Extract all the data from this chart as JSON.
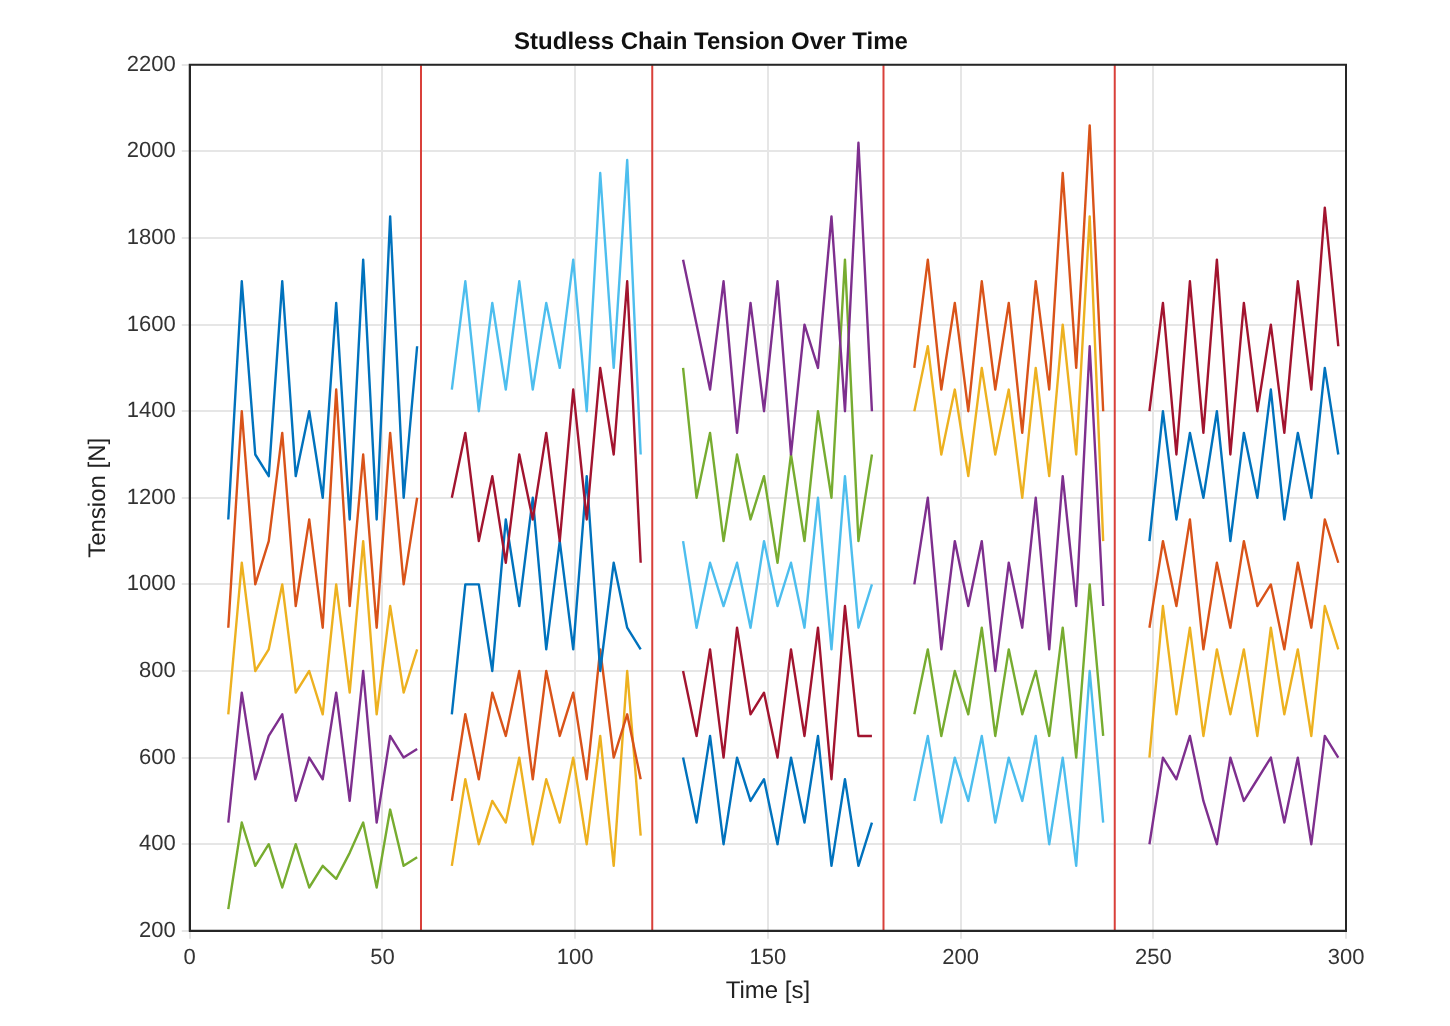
{
  "chart_data": {
    "type": "line",
    "title": "Studless Chain Tension Over Time",
    "xlabel": "Time [s]",
    "ylabel": "Tension [N]",
    "xlim": [
      0,
      300
    ],
    "xticks": [
      0,
      50,
      100,
      150,
      200,
      250,
      300
    ],
    "ylim": [
      200,
      2200
    ],
    "yticks": [
      200,
      400,
      600,
      800,
      1000,
      1200,
      1400,
      1600,
      1800,
      2000,
      2200
    ],
    "grid": true,
    "legend": false,
    "marker": "none",
    "line_style": "solid",
    "ref_lines": [
      {
        "axis": "x",
        "value": 60,
        "color": "#d9403a"
      },
      {
        "axis": "x",
        "value": 120,
        "color": "#d9403a"
      },
      {
        "axis": "x",
        "value": 180,
        "color": "#d9403a"
      },
      {
        "axis": "x",
        "value": 240,
        "color": "#d9403a"
      }
    ],
    "series": [
      {
        "color": "#0072bd",
        "x": [
          10,
          13.5,
          17,
          20.5,
          24,
          27.5,
          31,
          34.5,
          38,
          41.5,
          45,
          48.5,
          52,
          55.5,
          59
        ],
        "values": [
          1150,
          1700,
          1300,
          1250,
          1700,
          1250,
          1400,
          1200,
          1650,
          1150,
          1750,
          1150,
          1850,
          1200,
          1550
        ]
      },
      {
        "color": "#d95319",
        "x": [
          10,
          13.5,
          17,
          20.5,
          24,
          27.5,
          31,
          34.5,
          38,
          41.5,
          45,
          48.5,
          52,
          55.5,
          59
        ],
        "values": [
          900,
          1400,
          1000,
          1100,
          1350,
          950,
          1150,
          900,
          1450,
          950,
          1300,
          900,
          1350,
          1000,
          1200
        ]
      },
      {
        "color": "#edb120",
        "x": [
          10,
          13.5,
          17,
          20.5,
          24,
          27.5,
          31,
          34.5,
          38,
          41.5,
          45,
          48.5,
          52,
          55.5,
          59
        ],
        "values": [
          700,
          1050,
          800,
          850,
          1000,
          750,
          800,
          700,
          1000,
          750,
          1100,
          700,
          950,
          750,
          850
        ]
      },
      {
        "color": "#7e2f8e",
        "x": [
          10,
          13.5,
          17,
          20.5,
          24,
          27.5,
          31,
          34.5,
          38,
          41.5,
          45,
          48.5,
          52,
          55.5,
          59
        ],
        "values": [
          450,
          750,
          550,
          650,
          700,
          500,
          600,
          550,
          750,
          500,
          800,
          450,
          650,
          600,
          620
        ]
      },
      {
        "color": "#77ac30",
        "x": [
          10,
          13.5,
          17,
          20.5,
          24,
          27.5,
          31,
          34.5,
          38,
          41.5,
          45,
          48.5,
          52,
          55.5,
          59
        ],
        "values": [
          250,
          450,
          350,
          400,
          300,
          400,
          300,
          350,
          320,
          380,
          450,
          300,
          480,
          350,
          370
        ]
      },
      {
        "color": "#4dbeee",
        "x": [
          68,
          71.5,
          75,
          78.5,
          82,
          85.5,
          89,
          92.5,
          96,
          99.5,
          103,
          106.5,
          110,
          113.5,
          117
        ],
        "values": [
          1450,
          1700,
          1400,
          1650,
          1450,
          1700,
          1450,
          1650,
          1500,
          1750,
          1400,
          1950,
          1500,
          1980,
          1300
        ]
      },
      {
        "color": "#a2142f",
        "x": [
          68,
          71.5,
          75,
          78.5,
          82,
          85.5,
          89,
          92.5,
          96,
          99.5,
          103,
          106.5,
          110,
          113.5,
          117
        ],
        "values": [
          1200,
          1350,
          1100,
          1250,
          1050,
          1300,
          1150,
          1350,
          1100,
          1450,
          1150,
          1500,
          1300,
          1700,
          1050
        ]
      },
      {
        "color": "#0072bd",
        "x": [
          68,
          71.5,
          75,
          78.5,
          82,
          85.5,
          89,
          92.5,
          96,
          99.5,
          103,
          106.5,
          110,
          113.5,
          117
        ],
        "values": [
          700,
          1000,
          1000,
          800,
          1150,
          950,
          1200,
          850,
          1100,
          850,
          1250,
          800,
          1050,
          900,
          850
        ]
      },
      {
        "color": "#d95319",
        "x": [
          68,
          71.5,
          75,
          78.5,
          82,
          85.5,
          89,
          92.5,
          96,
          99.5,
          103,
          106.5,
          110,
          113.5,
          117
        ],
        "values": [
          500,
          700,
          550,
          750,
          650,
          800,
          550,
          800,
          650,
          750,
          550,
          850,
          600,
          700,
          550
        ]
      },
      {
        "color": "#edb120",
        "x": [
          68,
          71.5,
          75,
          78.5,
          82,
          85.5,
          89,
          92.5,
          96,
          99.5,
          103,
          106.5,
          110,
          113.5,
          117
        ],
        "values": [
          350,
          550,
          400,
          500,
          450,
          600,
          400,
          550,
          450,
          600,
          400,
          650,
          350,
          800,
          420
        ]
      },
      {
        "color": "#7e2f8e",
        "x": [
          128,
          131.5,
          135,
          138.5,
          142,
          145.5,
          149,
          152.5,
          156,
          159.5,
          163,
          166.5,
          170,
          173.5,
          177
        ],
        "values": [
          1750,
          1600,
          1450,
          1700,
          1350,
          1650,
          1400,
          1700,
          1300,
          1600,
          1500,
          1850,
          1400,
          2020,
          1400
        ]
      },
      {
        "color": "#77ac30",
        "x": [
          128,
          131.5,
          135,
          138.5,
          142,
          145.5,
          149,
          152.5,
          156,
          159.5,
          163,
          166.5,
          170,
          173.5,
          177
        ],
        "values": [
          1500,
          1200,
          1350,
          1100,
          1300,
          1150,
          1250,
          1050,
          1300,
          1100,
          1400,
          1200,
          1750,
          1100,
          1300
        ]
      },
      {
        "color": "#4dbeee",
        "x": [
          128,
          131.5,
          135,
          138.5,
          142,
          145.5,
          149,
          152.5,
          156,
          159.5,
          163,
          166.5,
          170,
          173.5,
          177
        ],
        "values": [
          1100,
          900,
          1050,
          950,
          1050,
          900,
          1100,
          950,
          1050,
          900,
          1200,
          850,
          1250,
          900,
          1000
        ]
      },
      {
        "color": "#a2142f",
        "x": [
          128,
          131.5,
          135,
          138.5,
          142,
          145.5,
          149,
          152.5,
          156,
          159.5,
          163,
          166.5,
          170,
          173.5,
          177
        ],
        "values": [
          800,
          650,
          850,
          600,
          900,
          700,
          750,
          600,
          850,
          650,
          900,
          550,
          950,
          650,
          650
        ]
      },
      {
        "color": "#0072bd",
        "x": [
          128,
          131.5,
          135,
          138.5,
          142,
          145.5,
          149,
          152.5,
          156,
          159.5,
          163,
          166.5,
          170,
          173.5,
          177
        ],
        "values": [
          600,
          450,
          650,
          400,
          600,
          500,
          550,
          400,
          600,
          450,
          650,
          350,
          550,
          350,
          450
        ]
      },
      {
        "color": "#d95319",
        "x": [
          188,
          191.5,
          195,
          198.5,
          202,
          205.5,
          209,
          212.5,
          216,
          219.5,
          223,
          226.5,
          230,
          233.5,
          237
        ],
        "values": [
          1500,
          1750,
          1450,
          1650,
          1400,
          1700,
          1450,
          1650,
          1350,
          1700,
          1450,
          1950,
          1500,
          2060,
          1400
        ]
      },
      {
        "color": "#edb120",
        "x": [
          188,
          191.5,
          195,
          198.5,
          202,
          205.5,
          209,
          212.5,
          216,
          219.5,
          223,
          226.5,
          230,
          233.5,
          237
        ],
        "values": [
          1400,
          1550,
          1300,
          1450,
          1250,
          1500,
          1300,
          1450,
          1200,
          1500,
          1250,
          1600,
          1300,
          1850,
          1100
        ]
      },
      {
        "color": "#7e2f8e",
        "x": [
          188,
          191.5,
          195,
          198.5,
          202,
          205.5,
          209,
          212.5,
          216,
          219.5,
          223,
          226.5,
          230,
          233.5,
          237
        ],
        "values": [
          1000,
          1200,
          850,
          1100,
          950,
          1100,
          800,
          1050,
          900,
          1200,
          850,
          1250,
          950,
          1550,
          950
        ]
      },
      {
        "color": "#77ac30",
        "x": [
          188,
          191.5,
          195,
          198.5,
          202,
          205.5,
          209,
          212.5,
          216,
          219.5,
          223,
          226.5,
          230,
          233.5,
          237
        ],
        "values": [
          700,
          850,
          650,
          800,
          700,
          900,
          650,
          850,
          700,
          800,
          650,
          900,
          600,
          1000,
          650
        ]
      },
      {
        "color": "#4dbeee",
        "x": [
          188,
          191.5,
          195,
          198.5,
          202,
          205.5,
          209,
          212.5,
          216,
          219.5,
          223,
          226.5,
          230,
          233.5,
          237
        ],
        "values": [
          500,
          650,
          450,
          600,
          500,
          650,
          450,
          600,
          500,
          650,
          400,
          600,
          350,
          800,
          450
        ]
      },
      {
        "color": "#a2142f",
        "x": [
          249,
          252.5,
          256,
          259.5,
          263,
          266.5,
          270,
          273.5,
          277,
          280.5,
          284,
          287.5,
          291,
          294.5,
          298
        ],
        "values": [
          1400,
          1650,
          1300,
          1700,
          1350,
          1750,
          1300,
          1650,
          1400,
          1600,
          1350,
          1700,
          1450,
          1870,
          1550
        ]
      },
      {
        "color": "#0072bd",
        "x": [
          249,
          252.5,
          256,
          259.5,
          263,
          266.5,
          270,
          273.5,
          277,
          280.5,
          284,
          287.5,
          291,
          294.5,
          298
        ],
        "values": [
          1100,
          1400,
          1150,
          1350,
          1200,
          1400,
          1100,
          1350,
          1200,
          1450,
          1150,
          1350,
          1200,
          1500,
          1300
        ]
      },
      {
        "color": "#d95319",
        "x": [
          249,
          252.5,
          256,
          259.5,
          263,
          266.5,
          270,
          273.5,
          277,
          280.5,
          284,
          287.5,
          291,
          294.5,
          298
        ],
        "values": [
          900,
          1100,
          950,
          1150,
          850,
          1050,
          900,
          1100,
          950,
          1000,
          850,
          1050,
          900,
          1150,
          1050
        ]
      },
      {
        "color": "#edb120",
        "x": [
          249,
          252.5,
          256,
          259.5,
          263,
          266.5,
          270,
          273.5,
          277,
          280.5,
          284,
          287.5,
          291,
          294.5,
          298
        ],
        "values": [
          600,
          950,
          700,
          900,
          650,
          850,
          700,
          850,
          650,
          900,
          700,
          850,
          650,
          950,
          850
        ]
      },
      {
        "color": "#7e2f8e",
        "x": [
          249,
          252.5,
          256,
          259.5,
          263,
          266.5,
          270,
          273.5,
          277,
          280.5,
          284,
          287.5,
          291,
          294.5,
          298
        ],
        "values": [
          400,
          600,
          550,
          650,
          500,
          400,
          600,
          500,
          550,
          600,
          450,
          600,
          400,
          650,
          600
        ]
      }
    ]
  }
}
